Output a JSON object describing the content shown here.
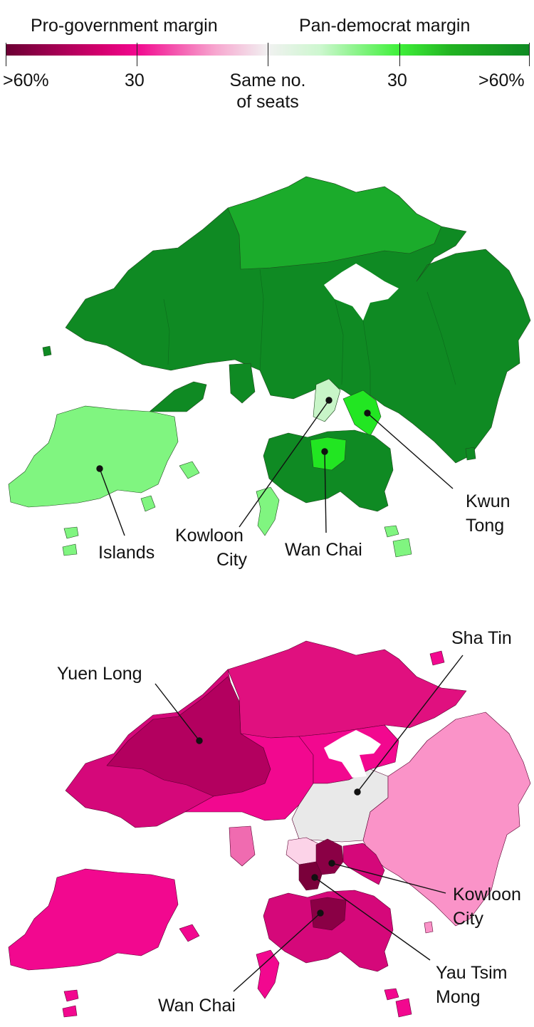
{
  "legend": {
    "left_title": "Pro-government margin",
    "right_title": "Pan-democrat margin",
    "ticks": [
      ">60%",
      "30",
      "Same no. of seats",
      "30",
      ">60%"
    ],
    "colors": {
      "pro_strong": "#6b0033",
      "pro_mid": "#f2088f",
      "neutral": "#efefef",
      "pan_mid": "#3ff03a",
      "pan_strong": "#0f8a23"
    }
  },
  "map_top": {
    "labels": {
      "islands": "Islands",
      "kowloon_city_1": "Kowloon",
      "kowloon_city_2": "City",
      "wan_chai": "Wan Chai",
      "kwun_tong_1": "Kwun",
      "kwun_tong_2": "Tong"
    }
  },
  "map_bottom": {
    "labels": {
      "yuen_long": "Yuen Long",
      "sha_tin": "Sha Tin",
      "kowloon_city_1": "Kowloon",
      "kowloon_city_2": "City",
      "yau_tsim_mong_1": "Yau Tsim",
      "yau_tsim_mong_2": "Mong",
      "wan_chai": "Wan Chai"
    }
  }
}
